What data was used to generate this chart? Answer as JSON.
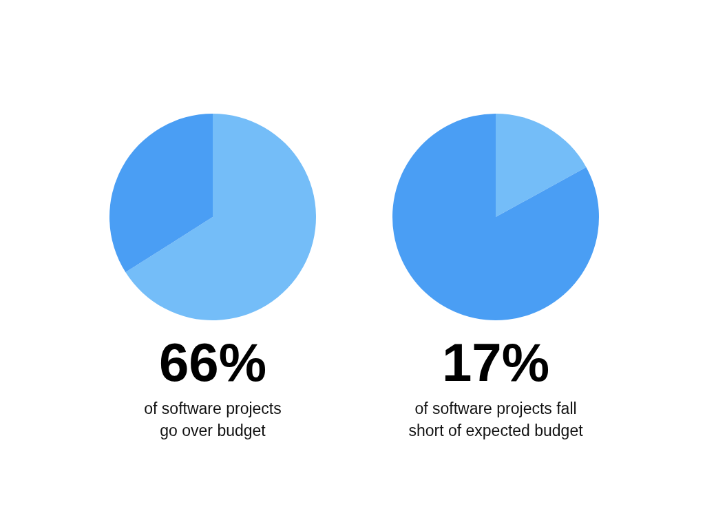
{
  "chart_data": [
    {
      "type": "pie",
      "title": "66%",
      "subtitle": "of software projects\ngo over budget",
      "categories": [
        null,
        null
      ],
      "values": [
        66,
        34
      ],
      "colors": [
        "#74bdf8",
        "#4a9ef4"
      ]
    },
    {
      "type": "pie",
      "title": "17%",
      "subtitle": "of software projects fall\nshort of expected budget",
      "categories": [
        null,
        null
      ],
      "values": [
        17,
        83
      ],
      "colors": [
        "#74bdf8",
        "#4a9ef4"
      ]
    }
  ]
}
